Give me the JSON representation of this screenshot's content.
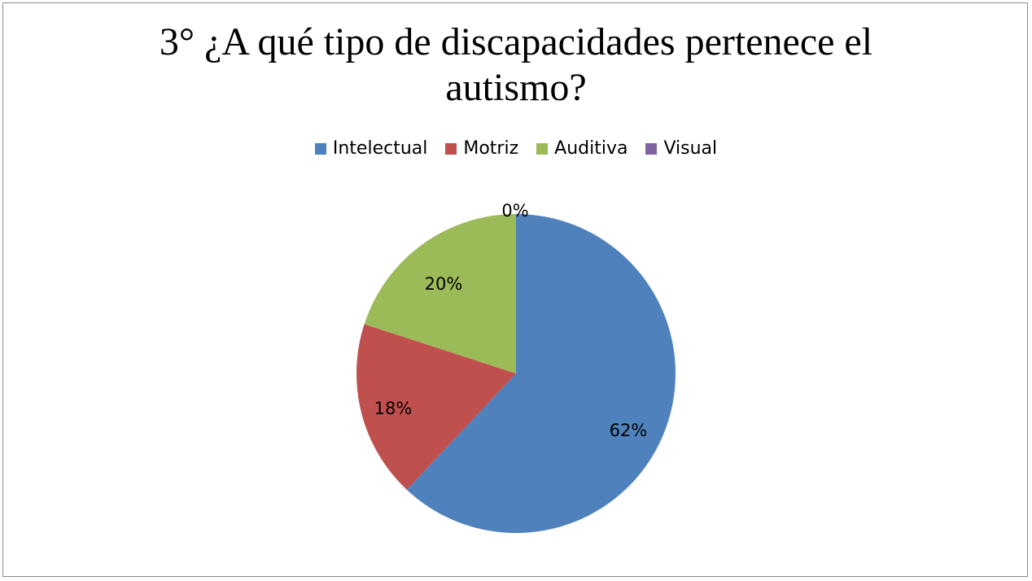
{
  "chart_data": {
    "type": "pie",
    "title_lines": [
      "3° ¿A qué tipo de discapacidades pertenece el",
      "autismo?"
    ],
    "categories": [
      "Intelectual",
      "Motriz",
      "Auditiva",
      "Visual"
    ],
    "values": [
      62,
      18,
      20,
      0
    ],
    "value_labels": [
      "62%",
      "18%",
      "20%",
      "0%"
    ],
    "colors": [
      "#4F81BD",
      "#C0504D",
      "#9BBB59",
      "#8064A2"
    ],
    "legend_position": "top",
    "start_angle": "12 o'clock",
    "direction": "clockwise"
  }
}
